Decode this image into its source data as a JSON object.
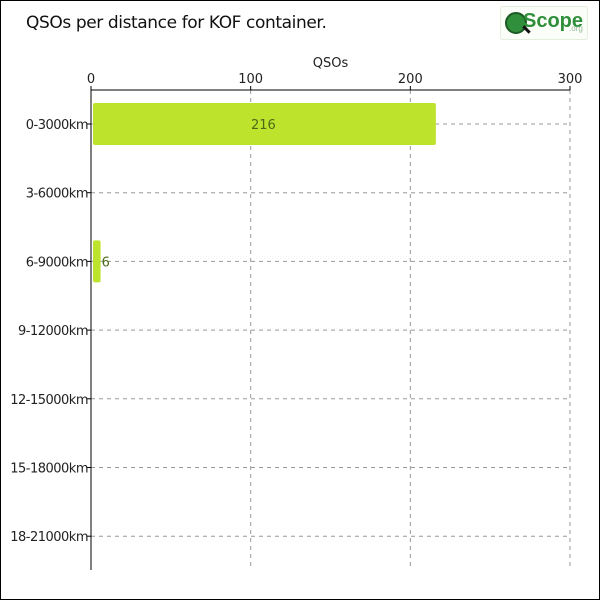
{
  "header": {
    "title": "QSOs per distance for KOF container.",
    "logo_text": "Scope",
    "logo_suffix": ".org"
  },
  "chart_data": {
    "type": "bar",
    "orientation": "horizontal",
    "title": "QSOs per distance for KOF container.",
    "xlabel": "QSOs",
    "ylabel": "",
    "categories": [
      "0-3000km",
      "3-6000km",
      "6-9000km",
      "9-12000km",
      "12-15000km",
      "15-18000km",
      "18-21000km"
    ],
    "values": [
      216,
      0,
      6,
      0,
      0,
      0,
      0
    ],
    "data_labels": [
      "216",
      "",
      "6",
      "",
      "",
      "",
      ""
    ],
    "xlim": [
      0,
      300
    ],
    "x_ticks": [
      0,
      100,
      200,
      300
    ],
    "x_axis_position": "top",
    "grid": true,
    "bar_color": "#bde32d"
  }
}
